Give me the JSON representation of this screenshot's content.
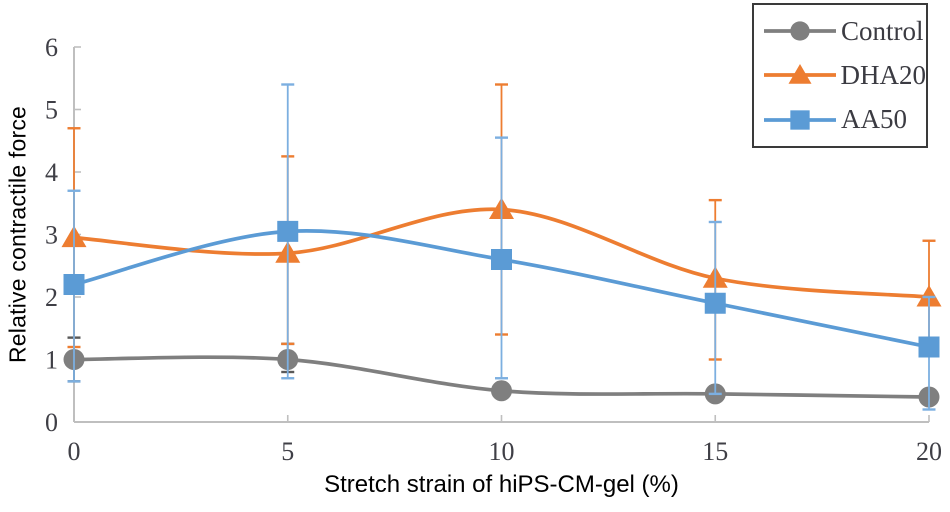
{
  "chart_data": {
    "type": "line",
    "title": "",
    "xlabel": "Stretch strain of hiPS-CM-gel (%)",
    "ylabel": "Relative contractile force",
    "x": [
      0,
      5,
      10,
      15,
      20
    ],
    "xticks": [
      0,
      5,
      10,
      15,
      20
    ],
    "yticks": [
      0,
      1,
      2,
      3,
      4,
      5,
      6
    ],
    "xlim": [
      0,
      20
    ],
    "ylim": [
      0,
      6
    ],
    "grid": false,
    "smooth_lines": true,
    "legend_position": "top-right",
    "axis_color": "#bfbfbf",
    "tick_label_color": "#3f3f46",
    "series": [
      {
        "name": "Control",
        "marker": "circle",
        "color": "#7f7f7f",
        "err_color": "#595959",
        "values": [
          1.0,
          1.0,
          0.5,
          0.45,
          0.4
        ],
        "err_up": [
          0.35,
          0.25,
          0.05,
          0.05,
          0.05
        ],
        "err_down": [
          0.35,
          0.2,
          0.05,
          0.05,
          0.05
        ]
      },
      {
        "name": "DHA20",
        "marker": "triangle",
        "color": "#ed7d31",
        "err_color": "#ed7d31",
        "values": [
          2.95,
          2.7,
          3.4,
          2.3,
          2.0
        ],
        "err_up": [
          1.75,
          1.55,
          2.0,
          1.25,
          0.9
        ],
        "err_down": [
          1.75,
          1.45,
          2.0,
          1.3,
          0.9
        ]
      },
      {
        "name": "AA50",
        "marker": "square",
        "color": "#5b9bd5",
        "err_color": "#7cafe0",
        "values": [
          2.2,
          3.05,
          2.6,
          1.9,
          1.2
        ],
        "err_up": [
          1.5,
          2.35,
          1.95,
          1.3,
          0.8
        ],
        "err_down": [
          1.55,
          2.35,
          1.9,
          1.45,
          1.0
        ]
      }
    ]
  }
}
